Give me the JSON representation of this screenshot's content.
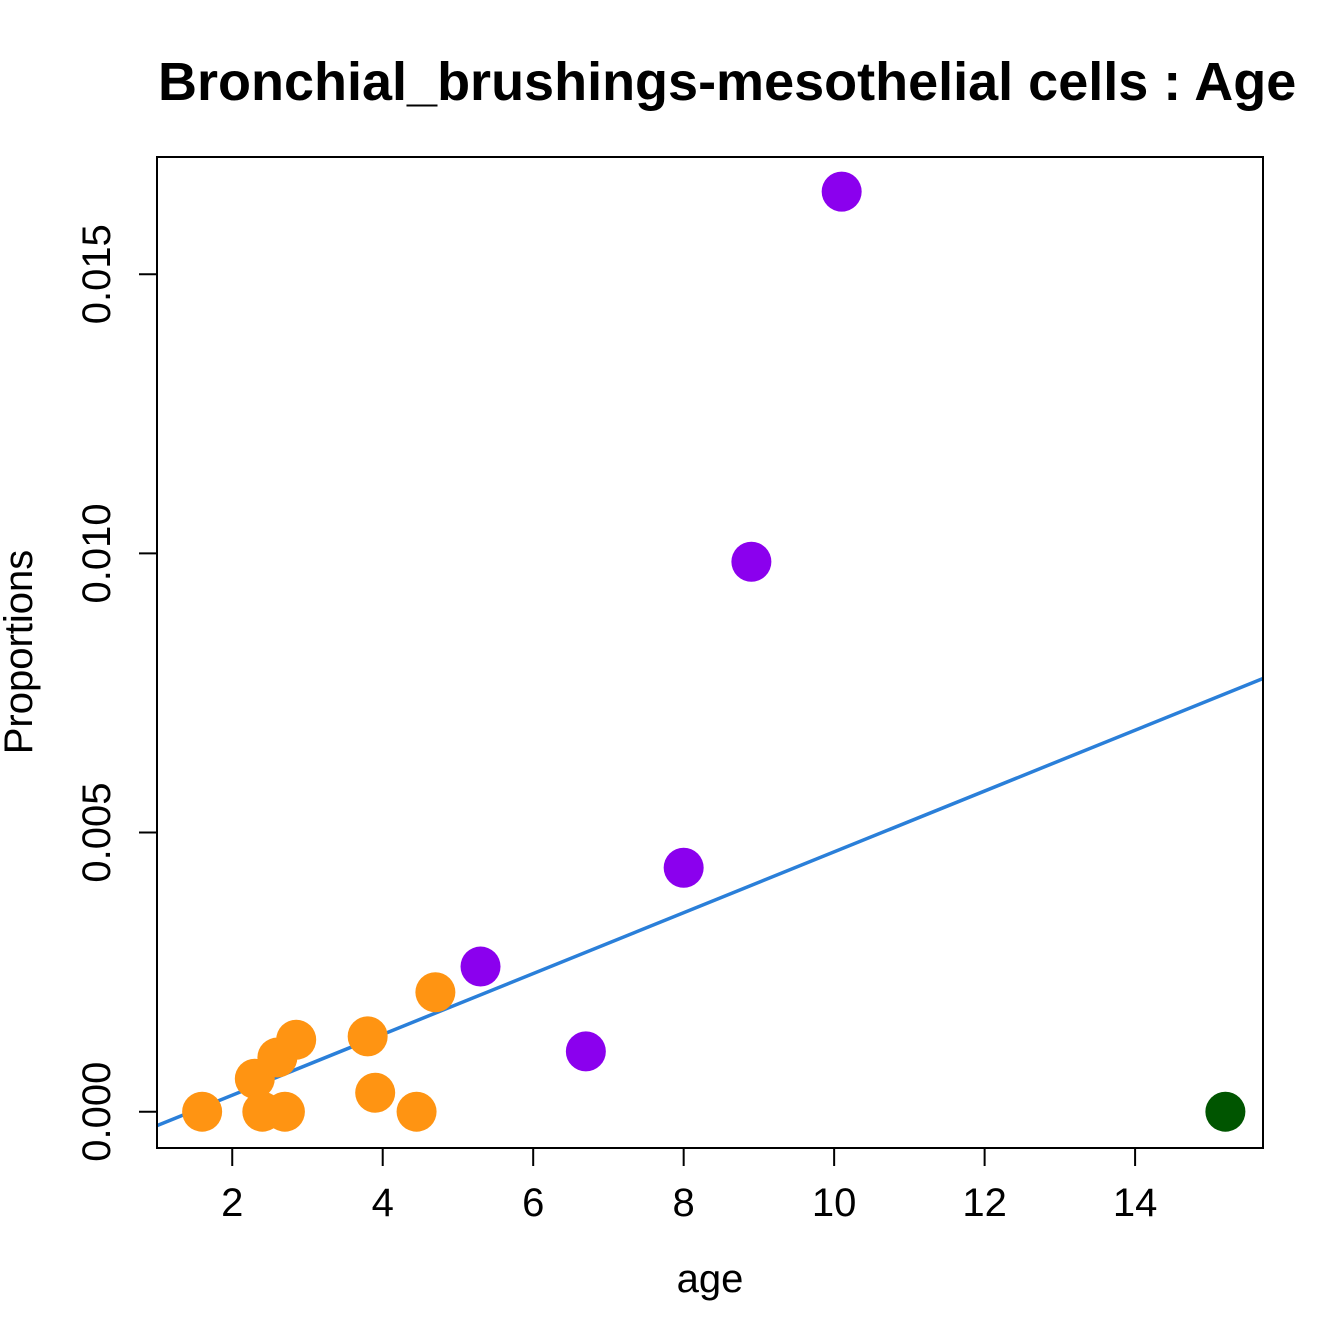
{
  "chart_data": {
    "type": "scatter",
    "title": "Bronchial_brushings-mesothelial cells : Age",
    "xlabel": "age",
    "ylabel": "Proportions",
    "xlim": [
      1.0,
      15.7
    ],
    "ylim": [
      -0.00065,
      0.0171
    ],
    "xticks": [
      2,
      4,
      6,
      8,
      10,
      12,
      14
    ],
    "xtick_labels": [
      "2",
      "4",
      "6",
      "8",
      "10",
      "12",
      "14"
    ],
    "yticks": [
      0.0,
      0.005,
      0.01,
      0.015
    ],
    "ytick_labels": [
      "0.000",
      "0.005",
      "0.010",
      "0.015"
    ],
    "grid": false,
    "series": [
      {
        "name": "orange group",
        "color": "#FF9412",
        "points": [
          {
            "x": 1.6,
            "y": 0.0
          },
          {
            "x": 2.3,
            "y": 0.00059
          },
          {
            "x": 2.4,
            "y": 0.0
          },
          {
            "x": 2.6,
            "y": 0.00097
          },
          {
            "x": 2.7,
            "y": 0.0
          },
          {
            "x": 2.85,
            "y": 0.00129
          },
          {
            "x": 3.8,
            "y": 0.00135
          },
          {
            "x": 3.9,
            "y": 0.00034
          },
          {
            "x": 4.45,
            "y": 0.0
          },
          {
            "x": 4.7,
            "y": 0.00214
          }
        ]
      },
      {
        "name": "purple group",
        "color": "#8B00EE",
        "points": [
          {
            "x": 5.3,
            "y": 0.0026
          },
          {
            "x": 6.7,
            "y": 0.00108
          },
          {
            "x": 8.0,
            "y": 0.00437
          },
          {
            "x": 8.9,
            "y": 0.00985
          },
          {
            "x": 10.1,
            "y": 0.01648
          }
        ]
      },
      {
        "name": "green group",
        "color": "#005500",
        "points": [
          {
            "x": 15.2,
            "y": 0.0
          }
        ]
      }
    ],
    "trend_line": {
      "color": "#2A7FD9",
      "x": [
        1.0,
        15.7
      ],
      "y": [
        -0.00025,
        0.00776
      ]
    }
  }
}
